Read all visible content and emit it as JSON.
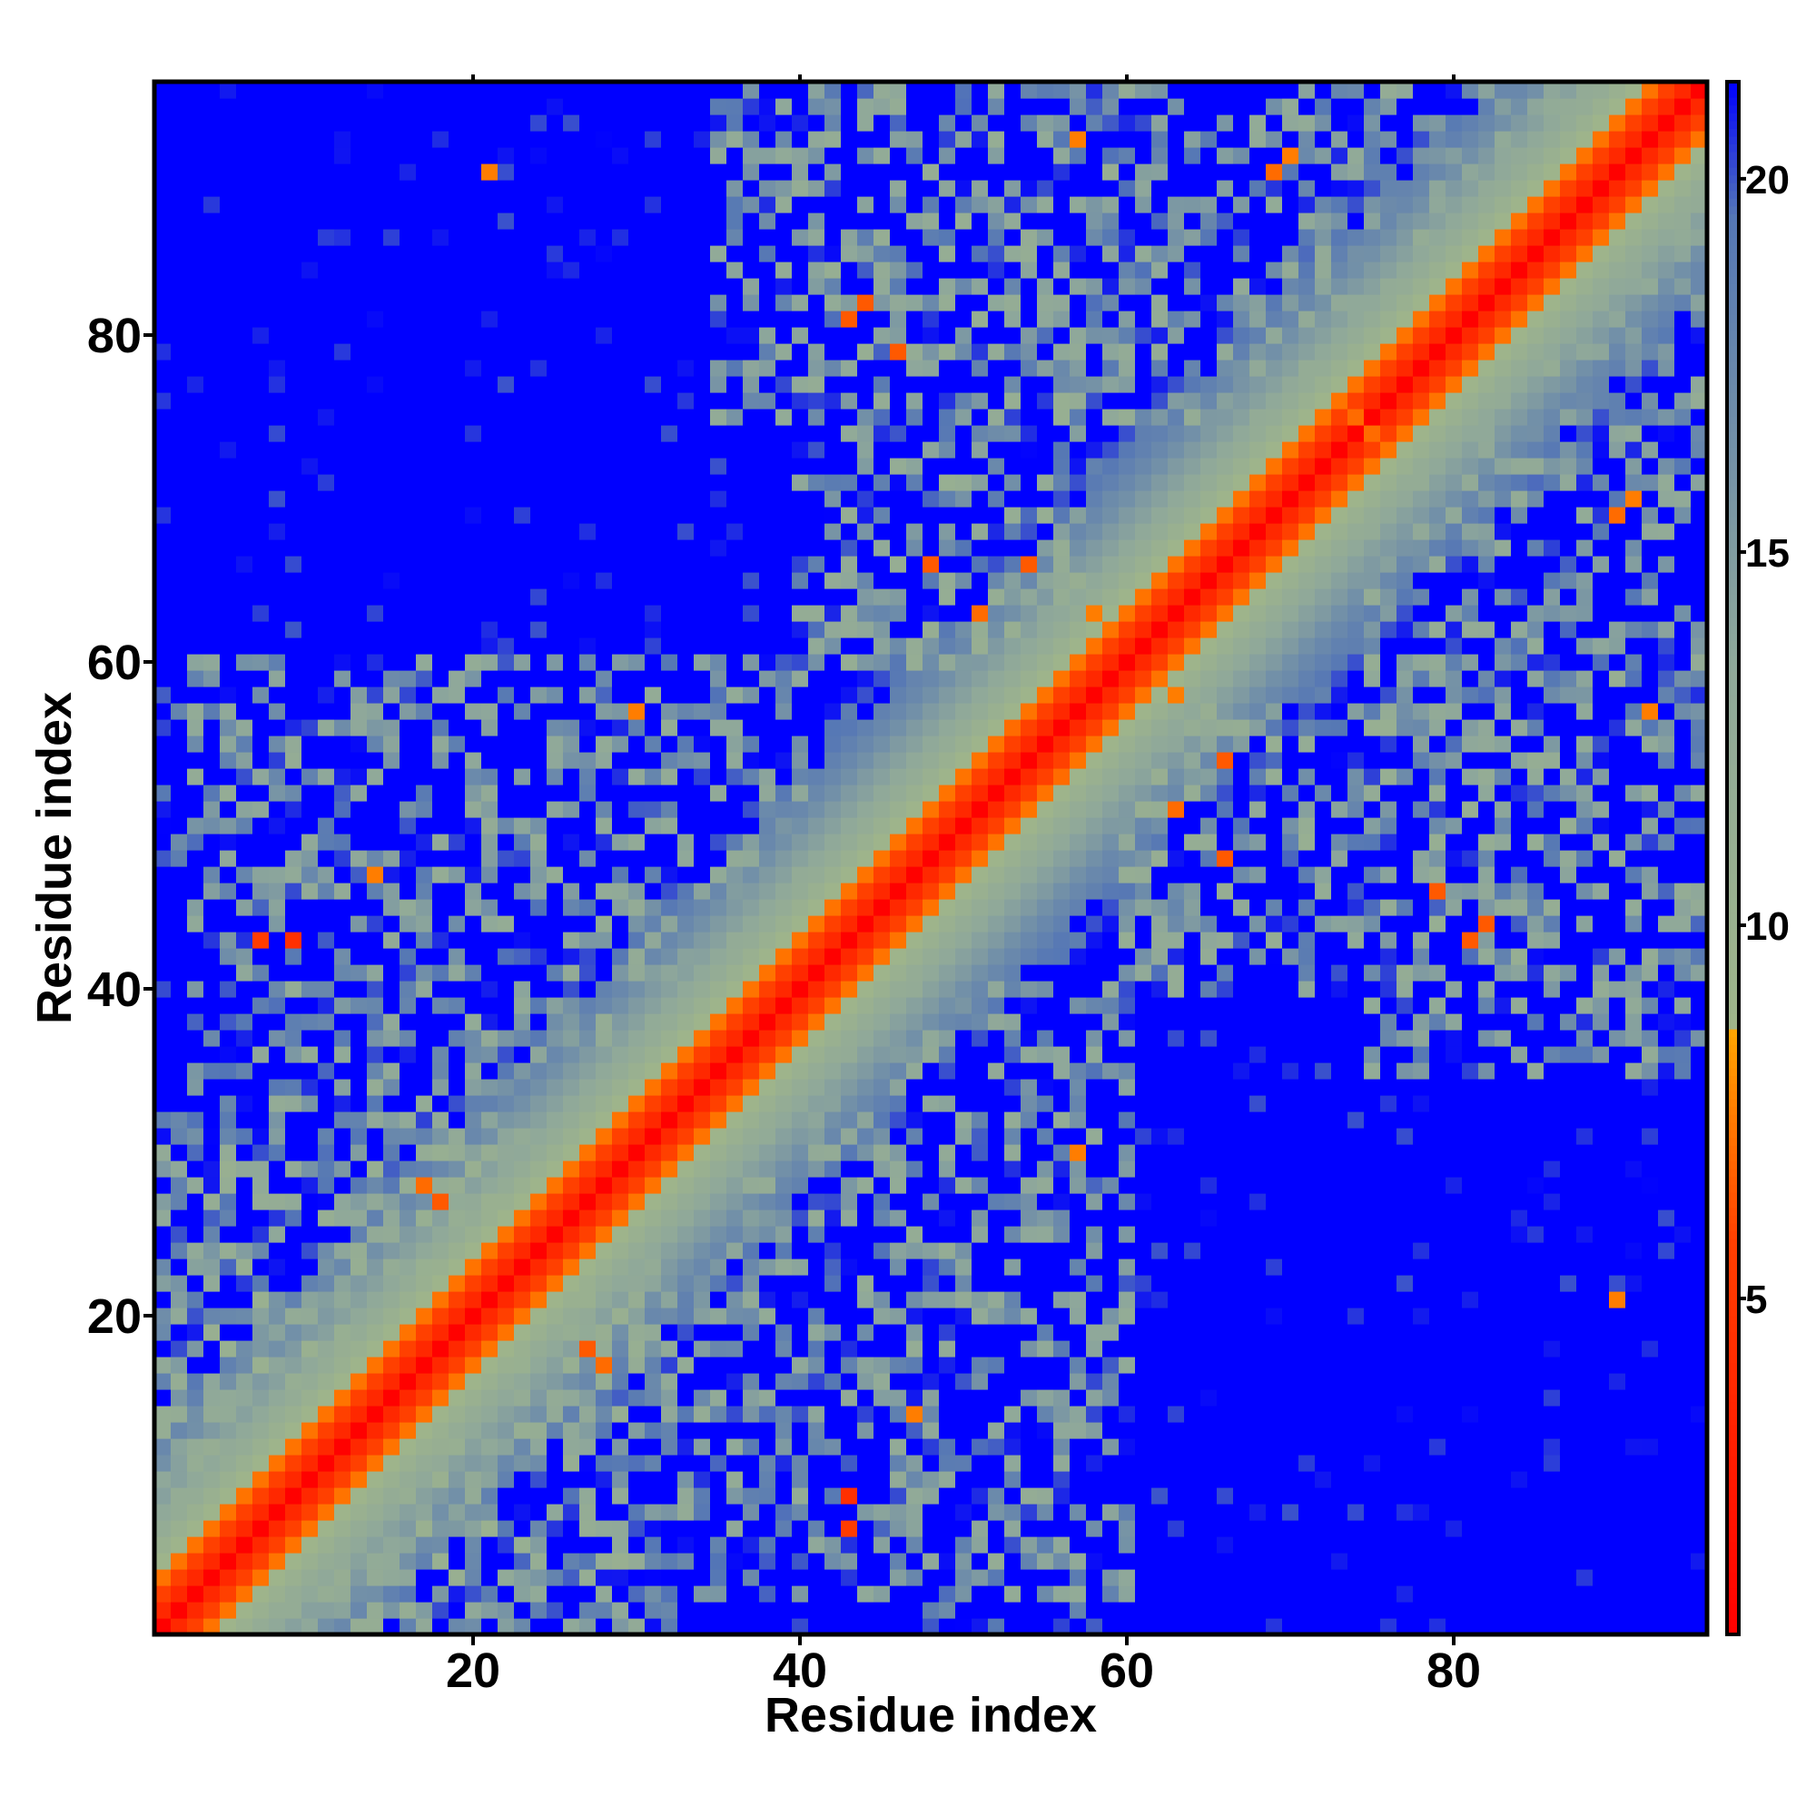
{
  "chart_data": {
    "type": "heatmap",
    "title": "",
    "xlabel": "Residue index",
    "ylabel": "Residue index",
    "n_residues": 95,
    "xlim": [
      0.5,
      95.5
    ],
    "ylim": [
      0.5,
      95.5
    ],
    "x_ticks": [
      20,
      40,
      60,
      80
    ],
    "x_tick_labels": [
      "20",
      "40",
      "60",
      "80"
    ],
    "y_ticks": [
      20,
      40,
      60,
      80
    ],
    "y_tick_labels": [
      "20",
      "40",
      "60",
      "80"
    ],
    "colorbar": {
      "range": [
        0.5,
        21.3
      ],
      "ticks": [
        5,
        10,
        15,
        20
      ],
      "tick_labels": [
        "5",
        "10",
        "15",
        "20"
      ],
      "stops": [
        {
          "value": 0.5,
          "color": "#ff0000"
        },
        {
          "value": 5.8,
          "color": "#ff4000"
        },
        {
          "value": 8.6,
          "color": "#ffa500"
        },
        {
          "value": 8.65,
          "color": "#9fb58a"
        },
        {
          "value": 13.5,
          "color": "#8fa89a"
        },
        {
          "value": 19.5,
          "color": "#5577b5"
        },
        {
          "value": 21.3,
          "color": "#0000ff"
        }
      ]
    },
    "distance_model": {
      "description": "Symmetric residue-residue distance map: near-diagonal values increase with sequence separation; off-diagonal contacts shown as orange/green speckles over a blue background.",
      "diagonal": [
        [
          0,
          0.6
        ],
        [
          1,
          3.8
        ],
        [
          2,
          5.8
        ],
        [
          3,
          7.2
        ],
        [
          4,
          9.0
        ],
        [
          5,
          10.5
        ],
        [
          6,
          12.0
        ],
        [
          7,
          13.2
        ],
        [
          8,
          14.3
        ],
        [
          9,
          15.2
        ],
        [
          10,
          16.5
        ]
      ],
      "contact_regions": [
        {
          "i_range": [
            1,
            30
          ],
          "j_range": [
            1,
            30
          ],
          "min_distance": 10.5
        },
        {
          "i_range": [
            40,
            57
          ],
          "j_range": [
            60,
            75
          ],
          "min_distance": 11
        },
        {
          "i_range": [
            42,
            60
          ],
          "j_range": [
            75,
            92
          ],
          "min_distance": 11
        },
        {
          "i_range": [
            3,
            40
          ],
          "j_range": [
            30,
            60
          ],
          "min_distance": 12
        },
        {
          "i_range": [
            35,
            95
          ],
          "j_range": [
            75,
            95
          ],
          "min_distance": 12
        },
        {
          "i_range": [
            60,
            95
          ],
          "j_range": [
            1,
            45
          ],
          "min_distance": 20
        }
      ],
      "close_contacts": [
        {
          "i": 9,
          "j": 43,
          "d": 4.5
        },
        {
          "i": 43,
          "j": 7,
          "d": 5.5
        },
        {
          "i": 44,
          "j": 82,
          "d": 6.5
        },
        {
          "i": 46,
          "j": 79,
          "d": 6.5
        },
        {
          "i": 54,
          "j": 66,
          "d": 6.5
        },
        {
          "i": 48,
          "j": 66,
          "d": 6.5
        },
        {
          "i": 81,
          "j": 43,
          "d": 6.5
        },
        {
          "i": 18,
          "j": 27,
          "d": 6.5
        },
        {
          "i": 56,
          "j": 53,
          "d": 7.0
        },
        {
          "i": 63,
          "j": 58,
          "d": 7.5
        },
        {
          "i": 74,
          "j": 75,
          "d": 7.0
        },
        {
          "i": 69,
          "j": 90,
          "d": 7.0
        },
        {
          "i": 91,
          "j": 70,
          "d": 7.5
        },
        {
          "i": 28,
          "j": 17,
          "d": 7.0
        },
        {
          "i": 92,
          "j": 57,
          "d": 7.5
        },
        {
          "i": 47,
          "j": 14,
          "d": 7.5
        },
        {
          "i": 51,
          "j": 63,
          "d": 7.0
        },
        {
          "i": 57,
          "j": 30,
          "d": 7.5
        },
        {
          "i": 90,
          "j": 21,
          "d": 7.5
        }
      ]
    }
  }
}
